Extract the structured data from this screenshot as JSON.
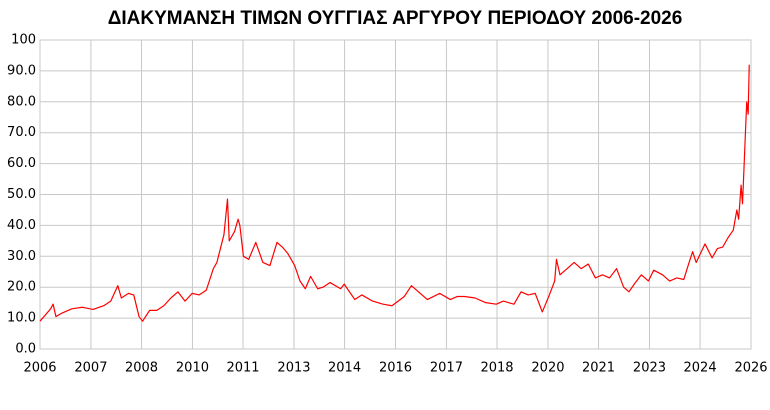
{
  "chart_data": {
    "type": "line",
    "title": "ΔΙΑΚΥΜΑΝΣΗ ΤΙΜΩΝ ΟΥΓΓΙΑΣ ΑΡΓΥΡΟΥ ΠΕΡΙΟΔΟΥ 2006-2026",
    "color": "#ff0000",
    "grid": true,
    "xlim": [
      2006,
      2026.1
    ],
    "xticks": [
      2006,
      {
        "value": 2007.44,
        "label": "2007"
      },
      {
        "value": 2008.87,
        "label": "2008"
      },
      {
        "value": 2010.31,
        "label": "2010"
      },
      {
        "value": 2011.74,
        "label": "2011"
      },
      {
        "value": 2013.18,
        "label": "2013"
      },
      {
        "value": 2014.61,
        "label": "2014"
      },
      {
        "value": 2016.05,
        "label": "2016"
      },
      {
        "value": 2017.49,
        "label": "2017"
      },
      {
        "value": 2018.92,
        "label": "2018"
      },
      {
        "value": 2020.36,
        "label": "2020"
      },
      {
        "value": 2021.79,
        "label": "2021"
      },
      {
        "value": 2023.23,
        "label": "2023"
      },
      {
        "value": 2024.66,
        "label": "2024"
      },
      {
        "value": 2026.1,
        "label": "2026"
      }
    ],
    "ylim": [
      0,
      100
    ],
    "yticks": [
      {
        "value": 0,
        "label": "0.0"
      },
      {
        "value": 10,
        "label": "10.0"
      },
      {
        "value": 20,
        "label": "20.0"
      },
      {
        "value": 30,
        "label": "30.0"
      },
      {
        "value": 40,
        "label": "40.0"
      },
      {
        "value": 50,
        "label": "50.0"
      },
      {
        "value": 60,
        "label": "60.0"
      },
      {
        "value": 70,
        "label": "70.0"
      },
      {
        "value": 80,
        "label": "80.0"
      },
      {
        "value": 90,
        "label": "90.0"
      },
      100
    ],
    "x": [
      2006.0,
      2006.3,
      2006.37,
      2006.45,
      2006.6,
      2006.9,
      2007.2,
      2007.5,
      2007.8,
      2008.0,
      2008.2,
      2008.3,
      2008.5,
      2008.65,
      2008.8,
      2008.9,
      2009.1,
      2009.3,
      2009.5,
      2009.7,
      2009.9,
      2010.1,
      2010.3,
      2010.5,
      2010.7,
      2010.9,
      2011.0,
      2011.2,
      2011.3,
      2011.35,
      2011.5,
      2011.6,
      2011.65,
      2011.75,
      2011.9,
      2012.1,
      2012.3,
      2012.5,
      2012.7,
      2012.85,
      2013.0,
      2013.2,
      2013.35,
      2013.5,
      2013.65,
      2013.85,
      2014.0,
      2014.2,
      2014.5,
      2014.6,
      2014.9,
      2015.1,
      2015.4,
      2015.7,
      2015.95,
      2016.3,
      2016.5,
      2016.8,
      2016.95,
      2017.3,
      2017.6,
      2017.8,
      2018.0,
      2018.3,
      2018.6,
      2018.9,
      2019.1,
      2019.4,
      2019.6,
      2019.8,
      2020.0,
      2020.2,
      2020.4,
      2020.55,
      2020.6,
      2020.7,
      2020.9,
      2021.1,
      2021.3,
      2021.5,
      2021.7,
      2021.9,
      2022.1,
      2022.3,
      2022.5,
      2022.65,
      2022.8,
      2023.0,
      2023.2,
      2023.35,
      2023.6,
      2023.8,
      2024.0,
      2024.2,
      2024.35,
      2024.45,
      2024.55,
      2024.8,
      2025.0,
      2025.15,
      2025.3,
      2025.45,
      2025.6,
      2025.7,
      2025.75,
      2025.82,
      2025.86,
      2025.9,
      2025.95,
      2025.98,
      2026.02,
      2026.05
    ],
    "values": [
      9,
      13,
      14.5,
      10.5,
      11.5,
      13,
      13.5,
      12.8,
      14,
      15.5,
      20.5,
      16.5,
      18,
      17.5,
      10.5,
      9,
      12.5,
      12.5,
      14,
      16.5,
      18.5,
      15.5,
      18,
      17.5,
      19,
      26,
      28,
      37,
      48.5,
      35,
      38,
      42,
      40,
      30,
      29,
      34.5,
      28,
      27,
      34.5,
      33,
      31,
      27,
      22,
      19.5,
      23.5,
      19.5,
      20,
      21.5,
      19.5,
      21,
      16,
      17.5,
      15.5,
      14.5,
      14,
      17,
      20.5,
      17.5,
      16,
      18,
      16,
      17,
      17,
      16.5,
      15,
      14.5,
      15.5,
      14.5,
      18.5,
      17.5,
      18,
      12,
      17.5,
      22,
      29,
      24,
      26,
      28,
      26,
      27.5,
      23,
      24,
      23,
      26,
      20,
      18.5,
      21,
      24,
      22,
      25.5,
      24,
      22,
      23,
      22.5,
      28,
      31.5,
      28,
      34,
      29.5,
      32.5,
      33,
      36,
      38.5,
      45,
      42,
      53,
      47,
      58,
      72,
      80,
      76,
      92
    ]
  }
}
